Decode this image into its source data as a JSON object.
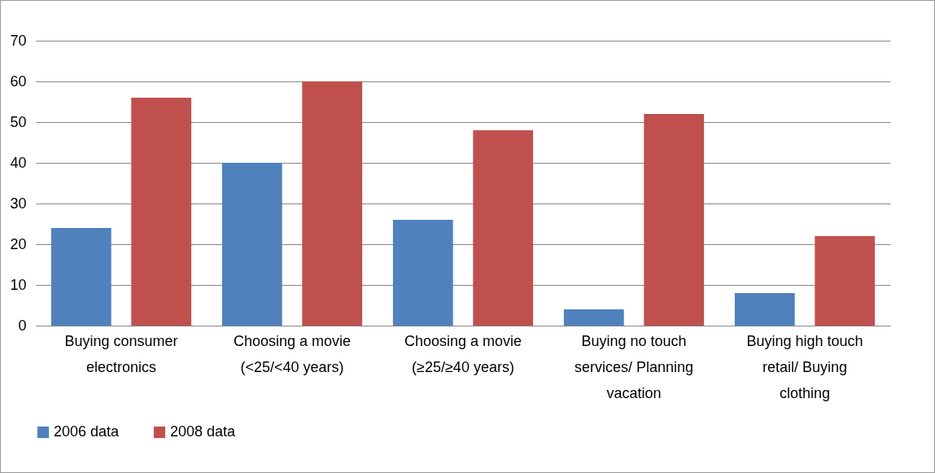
{
  "chart_data": {
    "type": "bar",
    "categories": [
      "Buying consumer electronics",
      "Choosing a movie (<25/<40 years)",
      "Choosing a movie (≥25/≥40 years)",
      "Buying no touch services/ Planning vacation",
      "Buying high touch retail/ Buying clothing"
    ],
    "series": [
      {
        "name": "2006 data",
        "color": "#4f81bd",
        "values": [
          24,
          40,
          26,
          4,
          8
        ]
      },
      {
        "name": "2008 data",
        "color": "#c0504d",
        "values": [
          56,
          60,
          48,
          52,
          22
        ]
      }
    ],
    "ylim": [
      0,
      70
    ],
    "yticks": [
      0,
      10,
      20,
      30,
      40,
      50,
      60,
      70
    ],
    "grid": "y",
    "legend": "bottom"
  }
}
